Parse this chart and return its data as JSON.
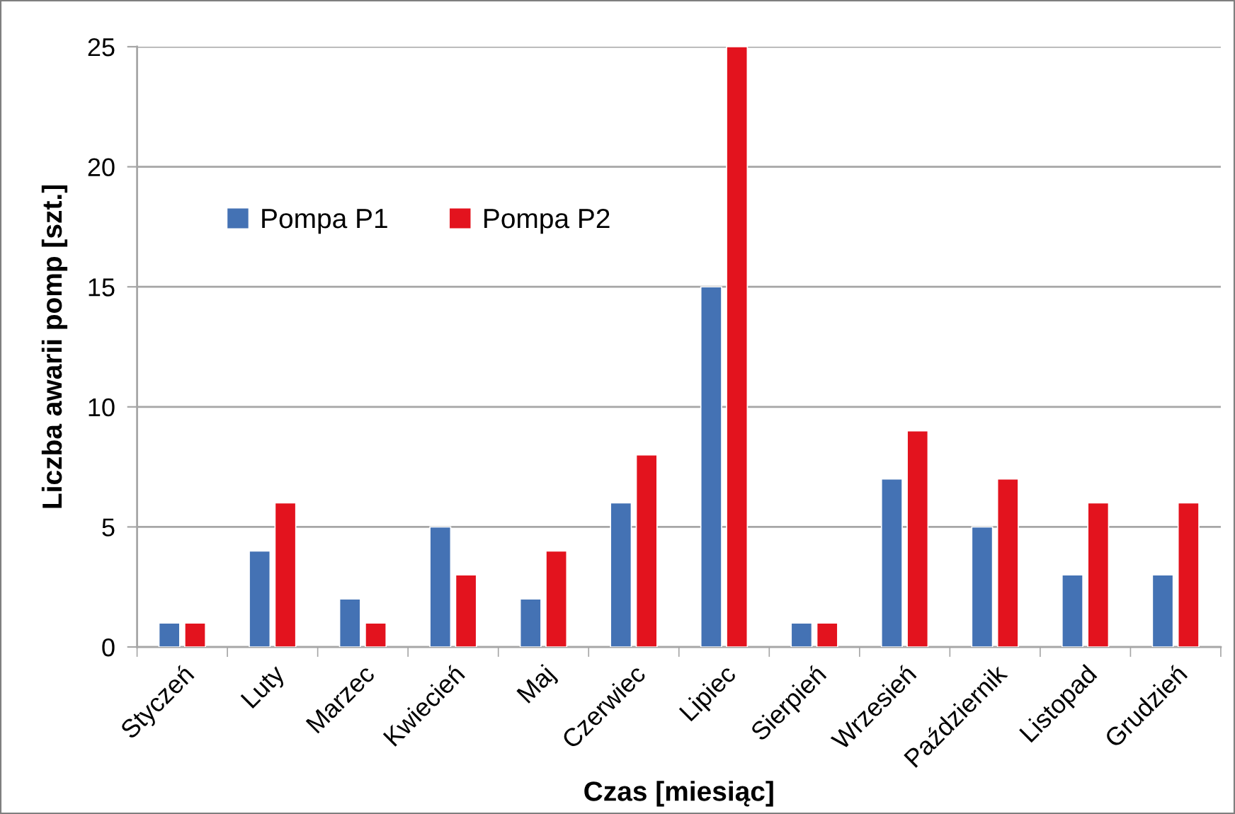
{
  "chart_data": {
    "type": "bar",
    "xlabel": "Czas [miesiąc]",
    "ylabel": "Liczba awarii pomp [szt.]",
    "categories": [
      "Styczeń",
      "Luty",
      "Marzec",
      "Kwiecień",
      "Maj",
      "Czerwiec",
      "Lipiec",
      "Sierpień",
      "Wrzesień",
      "Październik",
      "Listopad",
      "Grudzień"
    ],
    "series": [
      {
        "name": "Pompa P1",
        "color": "#4472b4",
        "values": [
          1,
          4,
          2,
          5,
          2,
          6,
          15,
          1,
          7,
          5,
          3,
          3
        ]
      },
      {
        "name": "Pompa P2",
        "color": "#e3131e",
        "values": [
          1,
          6,
          1,
          3,
          4,
          8,
          25,
          1,
          9,
          7,
          6,
          6
        ]
      }
    ],
    "ylim": [
      0,
      25
    ],
    "yticks": [
      0,
      5,
      10,
      15,
      20,
      25
    ],
    "grid": "y",
    "legend": "top left"
  }
}
